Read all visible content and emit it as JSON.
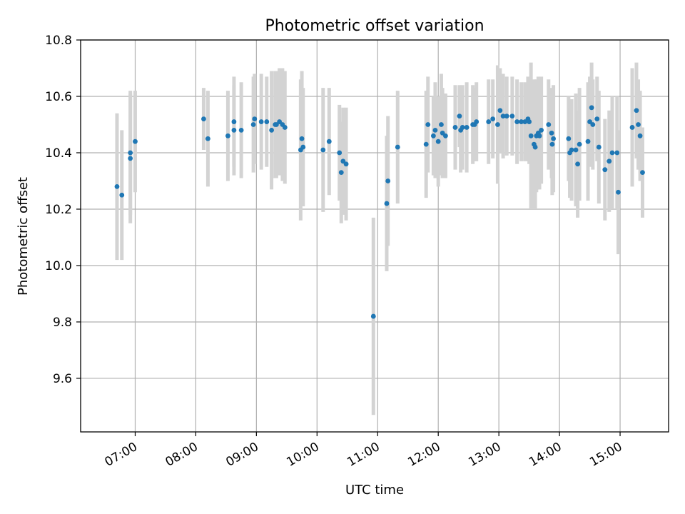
{
  "chart_data": {
    "type": "scatter",
    "title": "Photometric offset variation",
    "xlabel": "UTC time",
    "ylabel": "Photometric offset",
    "grid": true,
    "xlim": [
      6.1,
      15.8
    ],
    "ylim": [
      9.41,
      10.8
    ],
    "x_tick_values": [
      7,
      8,
      9,
      10,
      11,
      12,
      13,
      14,
      15
    ],
    "x_tick_labels": [
      "07:00",
      "08:00",
      "09:00",
      "10:00",
      "11:00",
      "12:00",
      "13:00",
      "14:00",
      "15:00"
    ],
    "y_tick_values": [
      9.6,
      9.8,
      10.0,
      10.2,
      10.4,
      10.6,
      10.8
    ],
    "y_tick_labels": [
      "9.6",
      "9.8",
      "10.0",
      "10.2",
      "10.4",
      "10.6",
      "10.8"
    ],
    "colors": {
      "point": "#1f77b4",
      "errorbar": "#d3d3d3"
    },
    "series": [
      {
        "x": [
          6.7,
          6.78,
          6.92,
          6.92,
          7.0,
          8.13,
          8.2,
          8.53,
          8.63,
          8.63,
          8.75,
          8.95,
          8.97,
          9.08,
          9.17,
          9.25,
          9.31,
          9.33,
          9.38,
          9.43,
          9.47,
          9.73,
          9.75,
          9.77,
          10.1,
          10.2,
          10.37,
          10.4,
          10.43,
          10.48,
          10.93,
          11.15,
          11.17,
          11.33,
          11.8,
          11.83,
          11.92,
          11.95,
          12.0,
          12.05,
          12.07,
          12.12,
          12.28,
          12.35,
          12.37,
          12.4,
          12.47,
          12.57,
          12.6,
          12.63,
          12.83,
          12.9,
          12.98,
          13.02,
          13.07,
          13.13,
          13.22,
          13.3,
          13.37,
          13.43,
          13.48,
          13.5,
          13.53,
          13.58,
          13.6,
          13.62,
          13.65,
          13.67,
          13.7,
          13.82,
          13.87,
          13.88,
          13.9,
          14.15,
          14.17,
          14.2,
          14.27,
          14.3,
          14.33,
          14.47,
          14.5,
          14.53,
          14.55,
          14.62,
          14.65,
          14.75,
          14.82,
          14.87,
          14.95,
          14.97,
          15.2,
          15.27,
          15.3,
          15.33,
          15.37
        ],
        "y": [
          10.28,
          10.25,
          10.4,
          10.38,
          10.44,
          10.52,
          10.45,
          10.46,
          10.51,
          10.48,
          10.48,
          10.5,
          10.52,
          10.51,
          10.51,
          10.48,
          10.5,
          10.5,
          10.51,
          10.5,
          10.49,
          10.41,
          10.45,
          10.42,
          10.41,
          10.44,
          10.4,
          10.33,
          10.37,
          10.36,
          9.82,
          10.22,
          10.3,
          10.42,
          10.43,
          10.5,
          10.46,
          10.48,
          10.44,
          10.5,
          10.47,
          10.46,
          10.49,
          10.53,
          10.48,
          10.49,
          10.49,
          10.5,
          10.5,
          10.51,
          10.51,
          10.52,
          10.5,
          10.55,
          10.53,
          10.53,
          10.53,
          10.51,
          10.51,
          10.51,
          10.52,
          10.51,
          10.46,
          10.43,
          10.42,
          10.46,
          10.47,
          10.46,
          10.48,
          10.5,
          10.47,
          10.43,
          10.45,
          10.45,
          10.4,
          10.41,
          10.41,
          10.36,
          10.43,
          10.44,
          10.51,
          10.56,
          10.5,
          10.52,
          10.42,
          10.34,
          10.37,
          10.4,
          10.4,
          10.26,
          10.49,
          10.55,
          10.5,
          10.46,
          10.33
        ],
        "error": [
          0.26,
          0.23,
          0.22,
          0.23,
          0.18,
          0.11,
          0.17,
          0.16,
          0.16,
          0.16,
          0.17,
          0.17,
          0.16,
          0.17,
          0.16,
          0.21,
          0.19,
          0.19,
          0.19,
          0.2,
          0.2,
          0.25,
          0.24,
          0.21,
          0.22,
          0.19,
          0.17,
          0.18,
          0.19,
          0.2,
          0.35,
          0.24,
          0.23,
          0.2,
          0.19,
          0.17,
          0.14,
          0.17,
          0.16,
          0.18,
          0.16,
          0.15,
          0.15,
          0.11,
          0.15,
          0.15,
          0.16,
          0.14,
          0.13,
          0.14,
          0.15,
          0.14,
          0.21,
          0.15,
          0.15,
          0.14,
          0.14,
          0.15,
          0.14,
          0.14,
          0.15,
          0.15,
          0.26,
          0.23,
          0.22,
          0.2,
          0.2,
          0.19,
          0.19,
          0.16,
          0.16,
          0.18,
          0.19,
          0.15,
          0.16,
          0.18,
          0.2,
          0.19,
          0.2,
          0.21,
          0.16,
          0.16,
          0.16,
          0.15,
          0.2,
          0.18,
          0.18,
          0.2,
          0.2,
          0.22,
          0.21,
          0.17,
          0.16,
          0.16,
          0.16
        ]
      }
    ]
  }
}
